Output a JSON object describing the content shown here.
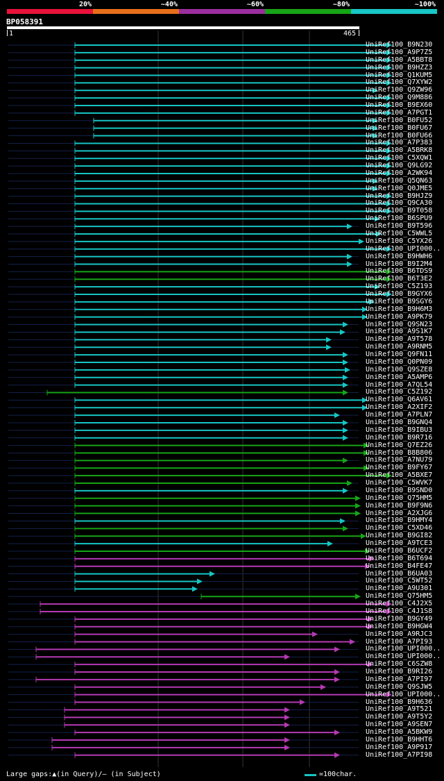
{
  "legend": {
    "labels": [
      {
        "text": "20%",
        "pos": 0.2
      },
      {
        "text": "~40%",
        "pos": 0.4
      },
      {
        "text": "~60%",
        "pos": 0.6
      },
      {
        "text": "~80%",
        "pos": 0.8
      },
      {
        "text": "~100%",
        "pos": 1.0
      }
    ],
    "colors": [
      "#e8123a",
      "#e66f1a",
      "#9b2e9e",
      "#16a516",
      "#17c6c6"
    ]
  },
  "query": {
    "id": "BP058391",
    "length_start": "1",
    "length_end": "465"
  },
  "footer": {
    "gaps_note": "Large gaps:▲(in Query)/– (in Subject)",
    "scale_text": "=100char."
  },
  "chart_data": {
    "type": "alignment-overview",
    "query_length": 465,
    "hits": [
      {
        "name": "UniRef100_B9N230",
        "start": 108,
        "end": 565,
        "color": "cyan"
      },
      {
        "name": "UniRef100_A9P7Z5",
        "start": 108,
        "end": 565,
        "color": "cyan"
      },
      {
        "name": "UniRef100_A5BBT8",
        "start": 108,
        "end": 565,
        "color": "cyan"
      },
      {
        "name": "UniRef100_B9HZZ3",
        "start": 108,
        "end": 565,
        "color": "cyan"
      },
      {
        "name": "UniRef100_Q1KUM5",
        "start": 108,
        "end": 565,
        "color": "cyan"
      },
      {
        "name": "UniRef100_Q7XYW2",
        "start": 108,
        "end": 565,
        "color": "cyan"
      },
      {
        "name": "UniRef100_Q9ZW96",
        "start": 108,
        "end": 545,
        "color": "cyan"
      },
      {
        "name": "UniRef100_Q9M886",
        "start": 108,
        "end": 565,
        "color": "cyan"
      },
      {
        "name": "UniRef100_B9EX60",
        "start": 108,
        "end": 565,
        "color": "cyan"
      },
      {
        "name": "UniRef100_A7PGT1",
        "start": 108,
        "end": 565,
        "color": "cyan"
      },
      {
        "name": "UniRef100_B0FU52",
        "start": 135,
        "end": 545,
        "color": "cyan"
      },
      {
        "name": "UniRef100_B0FU67",
        "start": 135,
        "end": 545,
        "color": "cyan"
      },
      {
        "name": "UniRef100_B0FU66",
        "start": 135,
        "end": 545,
        "color": "cyan"
      },
      {
        "name": "UniRef100_A7P383",
        "start": 108,
        "end": 565,
        "color": "cyan"
      },
      {
        "name": "UniRef100_A5BRK8",
        "start": 108,
        "end": 565,
        "color": "cyan"
      },
      {
        "name": "UniRef100_C5XQW1",
        "start": 108,
        "end": 565,
        "color": "cyan"
      },
      {
        "name": "UniRef100_Q9LG92",
        "start": 108,
        "end": 565,
        "color": "cyan"
      },
      {
        "name": "UniRef100_A2WK94",
        "start": 108,
        "end": 565,
        "color": "cyan"
      },
      {
        "name": "UniRef100_Q5QN63",
        "start": 108,
        "end": 545,
        "color": "cyan"
      },
      {
        "name": "UniRef100_Q0JME5",
        "start": 108,
        "end": 545,
        "color": "cyan"
      },
      {
        "name": "UniRef100_B9HJZ9",
        "start": 108,
        "end": 565,
        "color": "cyan"
      },
      {
        "name": "UniRef100_Q9CA30",
        "start": 108,
        "end": 565,
        "color": "cyan"
      },
      {
        "name": "UniRef100_B9T058",
        "start": 108,
        "end": 565,
        "color": "cyan"
      },
      {
        "name": "UniRef100_B6SPU9",
        "start": 108,
        "end": 548,
        "color": "cyan"
      },
      {
        "name": "UniRef100_B9T596",
        "start": 108,
        "end": 508,
        "color": "cyan"
      },
      {
        "name": "UniRef100_C5WWL5",
        "start": 108,
        "end": 550,
        "color": "cyan"
      },
      {
        "name": "UniRef100_C5YX26",
        "start": 108,
        "end": 525,
        "color": "cyan"
      },
      {
        "name": "UniRef100_UPI000..",
        "start": 108,
        "end": 565,
        "color": "cyan"
      },
      {
        "name": "UniRef100_B9HWH6",
        "start": 108,
        "end": 508,
        "color": "cyan"
      },
      {
        "name": "UniRef100_B9I2M4",
        "start": 108,
        "end": 508,
        "color": "cyan"
      },
      {
        "name": "UniRef100_B6TDS9",
        "start": 108,
        "end": 565,
        "color": "green"
      },
      {
        "name": "UniRef100_B6T3E2",
        "start": 108,
        "end": 565,
        "color": "green"
      },
      {
        "name": "UniRef100_C5Z193",
        "start": 108,
        "end": 548,
        "color": "cyan"
      },
      {
        "name": "UniRef100_B9GYX6",
        "start": 108,
        "end": 565,
        "color": "cyan"
      },
      {
        "name": "UniRef100_B9SGY6",
        "start": 108,
        "end": 540,
        "color": "cyan"
      },
      {
        "name": "UniRef100_B9H6M3",
        "start": 108,
        "end": 530,
        "color": "cyan"
      },
      {
        "name": "UniRef100_A9PK79",
        "start": 108,
        "end": 530,
        "color": "cyan"
      },
      {
        "name": "UniRef100_Q9SN23",
        "start": 108,
        "end": 502,
        "color": "cyan"
      },
      {
        "name": "UniRef100_A9S1K7",
        "start": 108,
        "end": 498,
        "color": "cyan"
      },
      {
        "name": "UniRef100_A9T578",
        "start": 108,
        "end": 478,
        "color": "cyan"
      },
      {
        "name": "UniRef100_A9RNM5",
        "start": 108,
        "end": 478,
        "color": "cyan"
      },
      {
        "name": "UniRef100_Q9FN11",
        "start": 108,
        "end": 502,
        "color": "cyan"
      },
      {
        "name": "UniRef100_Q0PN09",
        "start": 108,
        "end": 502,
        "color": "cyan"
      },
      {
        "name": "UniRef100_Q9SZE8",
        "start": 108,
        "end": 505,
        "color": "cyan"
      },
      {
        "name": "UniRef100_A5AMP6",
        "start": 108,
        "end": 502,
        "color": "cyan"
      },
      {
        "name": "UniRef100_A7QL54",
        "start": 108,
        "end": 502,
        "color": "cyan"
      },
      {
        "name": "UniRef100_C5Z192",
        "start": 68,
        "end": 502,
        "color": "green"
      },
      {
        "name": "UniRef100_Q6AV61",
        "start": 108,
        "end": 530,
        "color": "cyan"
      },
      {
        "name": "UniRef100_A2XIF2",
        "start": 108,
        "end": 530,
        "color": "cyan"
      },
      {
        "name": "UniRef100_A7PLN7",
        "start": 108,
        "end": 490,
        "color": "cyan"
      },
      {
        "name": "UniRef100_B9GNQ4",
        "start": 108,
        "end": 502,
        "color": "cyan"
      },
      {
        "name": "UniRef100_B9IBU3",
        "start": 108,
        "end": 502,
        "color": "cyan"
      },
      {
        "name": "UniRef100_B9R716",
        "start": 108,
        "end": 502,
        "color": "cyan"
      },
      {
        "name": "UniRef100_Q7EZ26",
        "start": 108,
        "end": 532,
        "color": "green"
      },
      {
        "name": "UniRef100_B8B806",
        "start": 108,
        "end": 532,
        "color": "green"
      },
      {
        "name": "UniRef100_A7NU79",
        "start": 108,
        "end": 502,
        "color": "green"
      },
      {
        "name": "UniRef100_B9FY67",
        "start": 108,
        "end": 532,
        "color": "green"
      },
      {
        "name": "UniRef100_A5BXE7",
        "start": 108,
        "end": 565,
        "color": "green"
      },
      {
        "name": "UniRef100_C5WVK7",
        "start": 108,
        "end": 508,
        "color": "green"
      },
      {
        "name": "UniRef100_B9SND0",
        "start": 108,
        "end": 502,
        "color": "cyan"
      },
      {
        "name": "UniRef100_Q75HM5",
        "start": 108,
        "end": 520,
        "color": "green"
      },
      {
        "name": "UniRef100_B9F9N6",
        "start": 108,
        "end": 520,
        "color": "green"
      },
      {
        "name": "UniRef100_A2XJG6",
        "start": 108,
        "end": 520,
        "color": "green"
      },
      {
        "name": "UniRef100_B9HMY4",
        "start": 108,
        "end": 498,
        "color": "cyan"
      },
      {
        "name": "UniRef100_C5XD46",
        "start": 108,
        "end": 502,
        "color": "green"
      },
      {
        "name": "UniRef100_B9GI82",
        "start": 108,
        "end": 528,
        "color": "green"
      },
      {
        "name": "UniRef100_A9TCE3",
        "start": 108,
        "end": 480,
        "color": "cyan"
      },
      {
        "name": "UniRef100_B6UCF2",
        "start": 108,
        "end": 534,
        "color": "green"
      },
      {
        "name": "UniRef100_B6T694",
        "start": 108,
        "end": 540,
        "color": "magenta"
      },
      {
        "name": "UniRef100_B4FE47",
        "start": 108,
        "end": 534,
        "color": "magenta"
      },
      {
        "name": "UniRef100_B6UA03",
        "start": 108,
        "end": 310,
        "color": "cyan"
      },
      {
        "name": "UniRef100_C5WT52",
        "start": 108,
        "end": 292,
        "color": "cyan"
      },
      {
        "name": "UniRef100_A9U301",
        "start": 108,
        "end": 285,
        "color": "cyan"
      },
      {
        "name": "UniRef100_Q75HM5",
        "start": 290,
        "end": 520,
        "color": "green"
      },
      {
        "name": "UniRef100_C4J2X5",
        "start": 58,
        "end": 565,
        "color": "magenta"
      },
      {
        "name": "UniRef100_C4J1S8",
        "start": 58,
        "end": 565,
        "color": "magenta"
      },
      {
        "name": "UniRef100_B9GY49",
        "start": 108,
        "end": 538,
        "color": "magenta"
      },
      {
        "name": "UniRef100_B9HGW4",
        "start": 108,
        "end": 538,
        "color": "magenta"
      },
      {
        "name": "UniRef100_A9RJC3",
        "start": 108,
        "end": 458,
        "color": "magenta"
      },
      {
        "name": "UniRef100_A7PI93",
        "start": 108,
        "end": 512,
        "color": "magenta"
      },
      {
        "name": "UniRef100_UPI000..",
        "start": 52,
        "end": 490,
        "color": "magenta"
      },
      {
        "name": "UniRef100_UPI000..",
        "start": 52,
        "end": 418,
        "color": "magenta"
      },
      {
        "name": "UniRef100_C6SZW8",
        "start": 108,
        "end": 538,
        "color": "magenta"
      },
      {
        "name": "UniRef100_B9RI26",
        "start": 108,
        "end": 490,
        "color": "magenta"
      },
      {
        "name": "UniRef100_A7PI97",
        "start": 52,
        "end": 490,
        "color": "magenta"
      },
      {
        "name": "UniRef100_Q9SJW5",
        "start": 108,
        "end": 470,
        "color": "magenta"
      },
      {
        "name": "UniRef100_UPI000..",
        "start": 108,
        "end": 565,
        "color": "magenta"
      },
      {
        "name": "UniRef100_B9H636",
        "start": 108,
        "end": 440,
        "color": "magenta"
      },
      {
        "name": "UniRef100_A9T521",
        "start": 93,
        "end": 418,
        "color": "magenta"
      },
      {
        "name": "UniRef100_A9T5Y2",
        "start": 93,
        "end": 418,
        "color": "magenta"
      },
      {
        "name": "UniRef100_A9SEN7",
        "start": 93,
        "end": 418,
        "color": "magenta"
      },
      {
        "name": "UniRef100_A5BKW9",
        "start": 108,
        "end": 490,
        "color": "magenta"
      },
      {
        "name": "UniRef100_B9HHT6",
        "start": 75,
        "end": 418,
        "color": "magenta"
      },
      {
        "name": "UniRef100_A9P917",
        "start": 75,
        "end": 418,
        "color": "magenta"
      },
      {
        "name": "UniRef100_A7PI98",
        "start": 108,
        "end": 490,
        "color": "magenta"
      }
    ],
    "colors": {
      "cyan": "#17c6c6",
      "green": "#16a516",
      "magenta": "#b53ab5",
      "orange": "#e66f1a",
      "red": "#e8123a"
    }
  }
}
